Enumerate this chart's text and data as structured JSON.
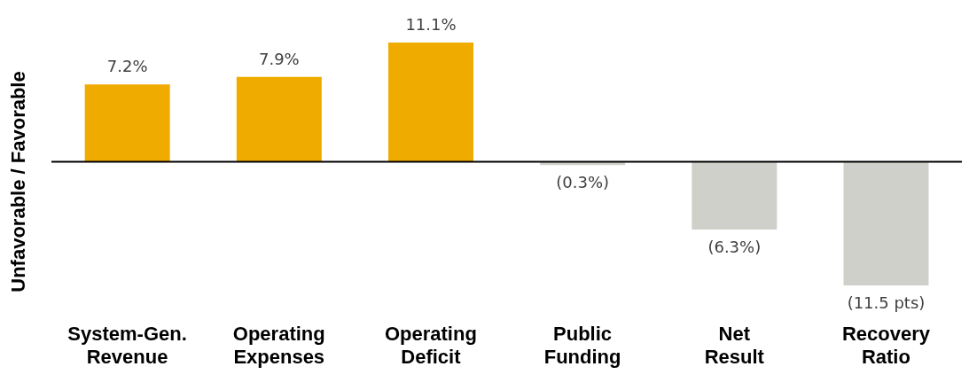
{
  "chart_data": {
    "type": "bar",
    "ylabel": "Unfavorable / Favorable",
    "categories": [
      "System-Gen. Revenue",
      "Operating Expenses",
      "Operating Deficit",
      "Public Funding",
      "Net Result",
      "Recovery Ratio"
    ],
    "values": [
      7.2,
      7.9,
      11.1,
      -0.3,
      -6.3,
      -11.5
    ],
    "value_labels": [
      "7.2%",
      "7.9%",
      "11.1%",
      "(0.3%)",
      "(6.3%)",
      "(11.5 pts)"
    ],
    "colors": [
      "#f0ab00",
      "#f0ab00",
      "#f0ab00",
      "#d0d0cb",
      "#d0d0cb",
      "#d0d0cb"
    ],
    "tick_labels": "x",
    "legend": false,
    "ref_lines": [
      {
        "axis": "y",
        "value": 0,
        "color": "#000000"
      }
    ]
  }
}
